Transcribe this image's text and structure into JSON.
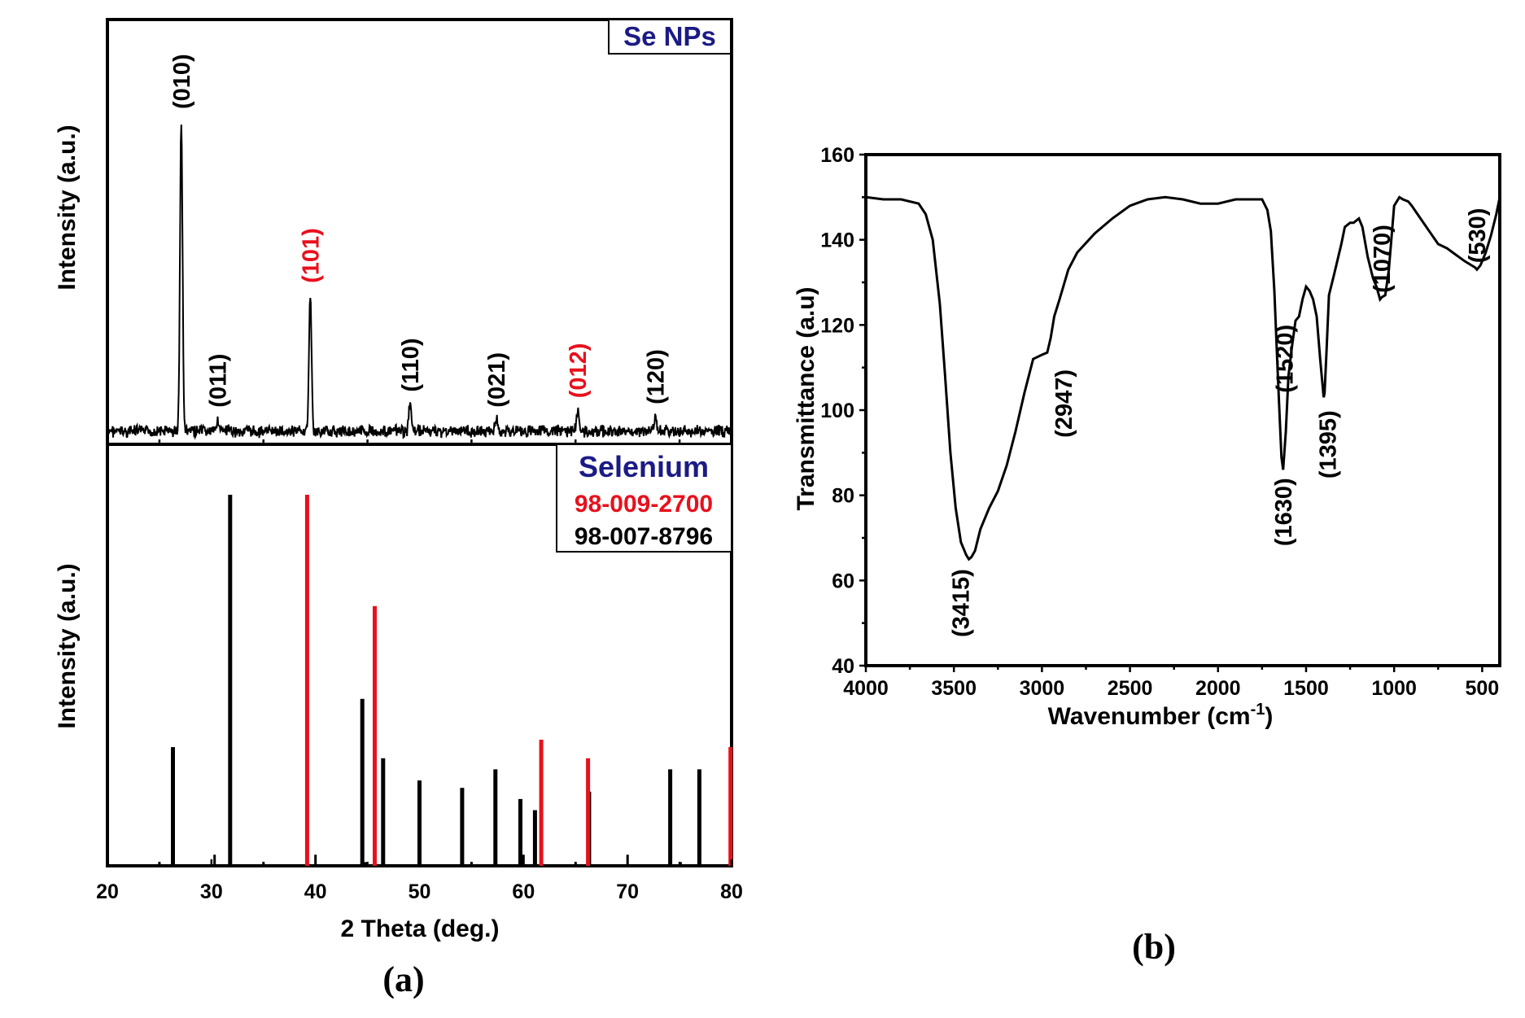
{
  "chart_data": [
    {
      "panel": "(a)",
      "type": "line",
      "subplot": "top",
      "sample_label": "Se NPs",
      "xlabel": "2 Theta (deg.)",
      "ylabel": "Intensity (a.u.)",
      "xlim": [
        20,
        80
      ],
      "peaks": [
        {
          "x": 27.1,
          "y": 1.0,
          "label": "(010)",
          "color": "#000000"
        },
        {
          "x": 30.6,
          "y": 0.04,
          "label": "(011)",
          "color": "#000000"
        },
        {
          "x": 39.5,
          "y": 0.44,
          "label": "(101)",
          "color": "#e8101c"
        },
        {
          "x": 49.1,
          "y": 0.09,
          "label": "(110)",
          "color": "#000000"
        },
        {
          "x": 57.4,
          "y": 0.04,
          "label": "(021)",
          "color": "#000000"
        },
        {
          "x": 65.2,
          "y": 0.07,
          "label": "(012)",
          "color": "#e8101c"
        },
        {
          "x": 72.7,
          "y": 0.05,
          "label": "(120)",
          "color": "#000000"
        }
      ]
    },
    {
      "panel": "(a)",
      "type": "bar",
      "subplot": "bottom",
      "xlabel": "2 Theta (deg.)",
      "ylabel": "Intensity (a.u.)",
      "xlim": [
        20,
        80
      ],
      "xticks": [
        20,
        30,
        40,
        50,
        60,
        70,
        80
      ],
      "legend": {
        "title": "Selenium",
        "entries": [
          {
            "text": "98-009-2700",
            "color": "#e8101c"
          },
          {
            "text": "98-007-8796",
            "color": "#000000"
          }
        ]
      },
      "series": [
        {
          "name": "98-007-8796",
          "color": "#000000",
          "x": [
            25.0,
            26.3,
            30.3,
            31.8,
            35.0,
            40.0,
            44.5,
            44.8,
            46.5,
            50.0,
            54.1,
            55.0,
            57.3,
            59.7,
            60.0,
            61.1,
            65.0,
            66.3,
            70.0,
            74.1,
            75.1,
            76.9
          ],
          "y": [
            0.01,
            0.32,
            0.03,
            1.0,
            0.01,
            0.03,
            0.45,
            0.01,
            0.29,
            0.23,
            0.21,
            0.01,
            0.26,
            0.18,
            0.03,
            0.15,
            0.01,
            0.2,
            0.03,
            0.26,
            0.01,
            0.26
          ]
        },
        {
          "name": "98-009-2700",
          "color": "#e8101c",
          "x": [
            39.2,
            45.7,
            61.7,
            66.2,
            79.9
          ],
          "y": [
            1.0,
            0.7,
            0.34,
            0.29,
            0.32
          ]
        }
      ]
    },
    {
      "panel": "(b)",
      "type": "line",
      "xlabel": "Wavenumber (cm",
      "xlabel_sup": "-1",
      "xlabel_end": ")",
      "ylabel": "Transmittance (a.u)",
      "xlim": [
        4000,
        400
      ],
      "ylim": [
        40,
        160
      ],
      "xticks": [
        4000,
        3500,
        3000,
        2500,
        2000,
        1500,
        1000,
        500
      ],
      "yticks": [
        40,
        60,
        80,
        100,
        120,
        140,
        160
      ],
      "series": [
        {
          "x": [
            4000,
            3900,
            3800,
            3700,
            3660,
            3620,
            3580,
            3550,
            3520,
            3490,
            3460,
            3430,
            3415,
            3400,
            3380,
            3350,
            3300,
            3250,
            3200,
            3150,
            3100,
            3050,
            3000,
            2970,
            2950,
            2930,
            2900,
            2850,
            2800,
            2700,
            2600,
            2500,
            2400,
            2300,
            2200,
            2100,
            2000,
            1900,
            1800,
            1750,
            1720,
            1700,
            1680,
            1660,
            1640,
            1630,
            1615,
            1600,
            1580,
            1560,
            1540,
            1520,
            1500,
            1480,
            1460,
            1440,
            1420,
            1400,
            1395,
            1385,
            1370,
            1340,
            1300,
            1280,
            1250,
            1230,
            1200,
            1180,
            1150,
            1120,
            1100,
            1080,
            1070,
            1050,
            1030,
            1000,
            970,
            950,
            920,
            900,
            850,
            800,
            750,
            700,
            650,
            600,
            560,
            540,
            530,
            510,
            480,
            450,
            420,
            400
          ],
          "y": [
            150,
            149.5,
            149.5,
            148.5,
            146,
            140,
            125,
            108,
            90,
            77,
            69,
            66,
            65,
            65.5,
            67,
            72,
            77,
            81,
            87,
            95,
            104,
            112,
            113,
            113.5,
            117,
            122,
            126,
            133,
            137,
            141.5,
            145,
            148,
            149.5,
            150,
            149.5,
            148.5,
            148.5,
            149.5,
            149.5,
            149.5,
            147,
            142,
            128,
            108,
            89,
            86,
            95,
            108,
            115,
            121,
            122,
            126,
            129,
            128,
            126,
            122,
            112,
            103,
            104,
            113,
            127,
            132,
            139,
            143,
            144,
            144,
            145,
            143,
            136,
            131,
            129,
            126,
            126.5,
            127,
            133,
            148,
            150,
            149.5,
            149,
            148,
            145,
            142,
            139,
            138,
            136.5,
            135,
            134,
            133.5,
            133,
            134,
            137,
            141,
            146,
            150
          ]
        }
      ],
      "annotations": [
        {
          "x": 3415,
          "y": 65,
          "label": "(3415)"
        },
        {
          "x": 2947,
          "y": 113,
          "label": "(2947)"
        },
        {
          "x": 1630,
          "y": 86,
          "label": "(1630)"
        },
        {
          "x": 1520,
          "y": 122,
          "label": "(1520)"
        },
        {
          "x": 1395,
          "y": 103,
          "label": "(1395)"
        },
        {
          "x": 1070,
          "y": 126,
          "label": "(1070)"
        },
        {
          "x": 530,
          "y": 133,
          "label": "(530)"
        }
      ]
    }
  ]
}
